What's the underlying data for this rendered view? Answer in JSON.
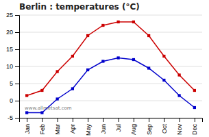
{
  "chart_data": {
    "type": "line",
    "title": "Berlin : temperatures (°C)",
    "categories": [
      "Jan",
      "Feb",
      "Mar",
      "Apr",
      "May",
      "Jun",
      "Jul",
      "Aug",
      "Sep",
      "Oct",
      "Nov",
      "Dec"
    ],
    "series": [
      {
        "color": "#cc0000",
        "values": [
          1.5,
          3.0,
          8.5,
          13.0,
          19.0,
          22.0,
          23.0,
          23.0,
          19.0,
          13.0,
          7.5,
          3.0
        ]
      },
      {
        "color": "#0000cc",
        "values": [
          -3.5,
          -3.5,
          0.5,
          3.5,
          9.0,
          11.5,
          12.5,
          12.0,
          9.5,
          6.0,
          1.5,
          -2.0
        ]
      }
    ],
    "ylim": [
      -5,
      25
    ],
    "yticks": [
      -5,
      0,
      5,
      10,
      15,
      20,
      25
    ],
    "grid": "y",
    "marker": "square",
    "annotations": [
      "www.allmetsat.com"
    ]
  }
}
